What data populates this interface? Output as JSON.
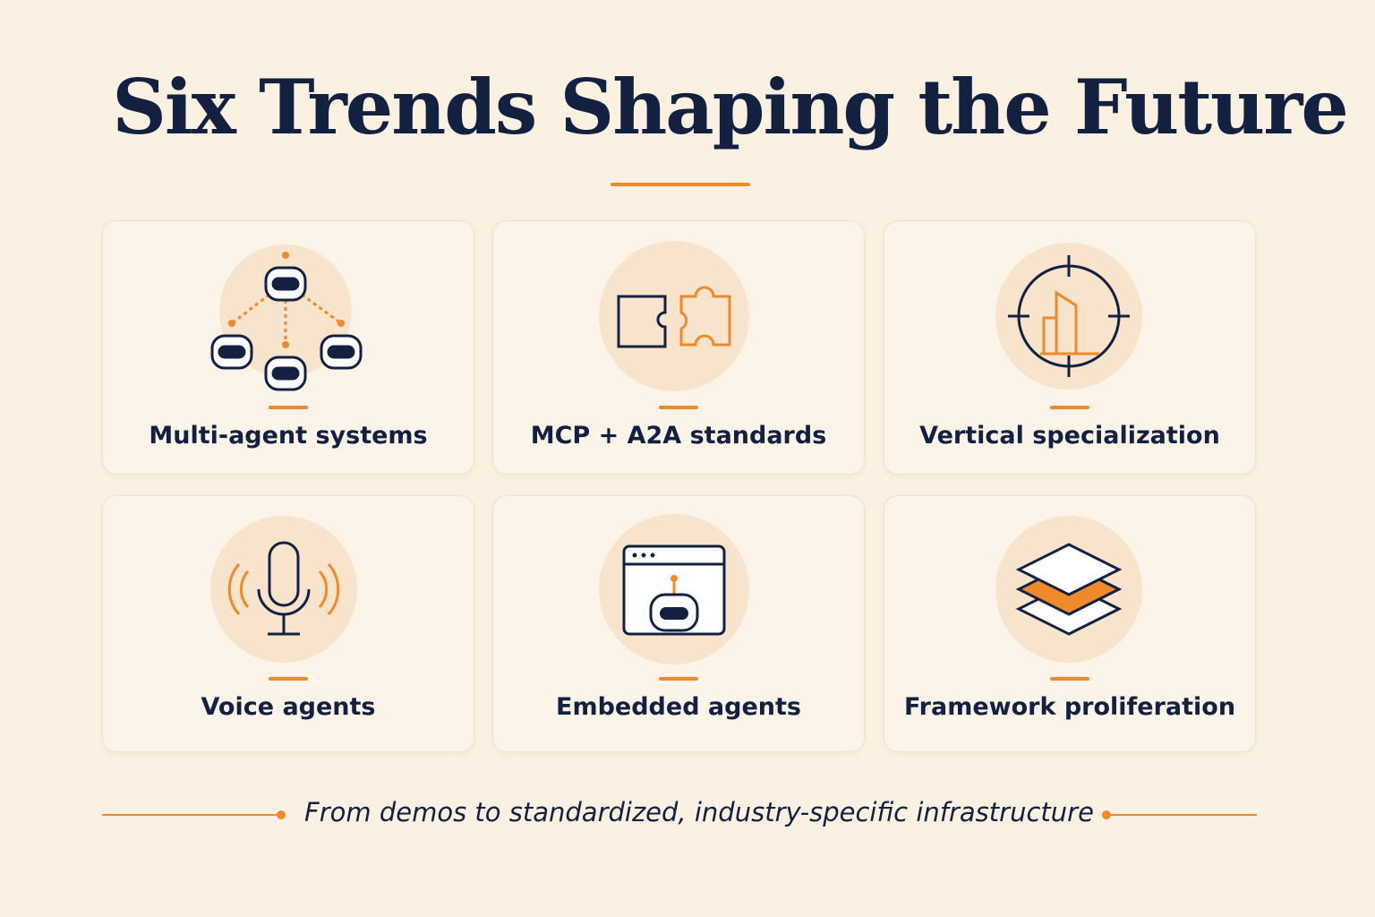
{
  "header": {
    "title": "Six Trends Shaping the Future"
  },
  "cards": [
    {
      "label": "Multi-agent systems"
    },
    {
      "label": "MCP + A2A standards"
    },
    {
      "label": "Vertical specialization"
    },
    {
      "label": "Voice agents"
    },
    {
      "label": "Embedded agents"
    },
    {
      "label": "Framework proliferation"
    }
  ],
  "footer": {
    "tagline": "From demos to standardized, industry-specific infrastructure"
  }
}
